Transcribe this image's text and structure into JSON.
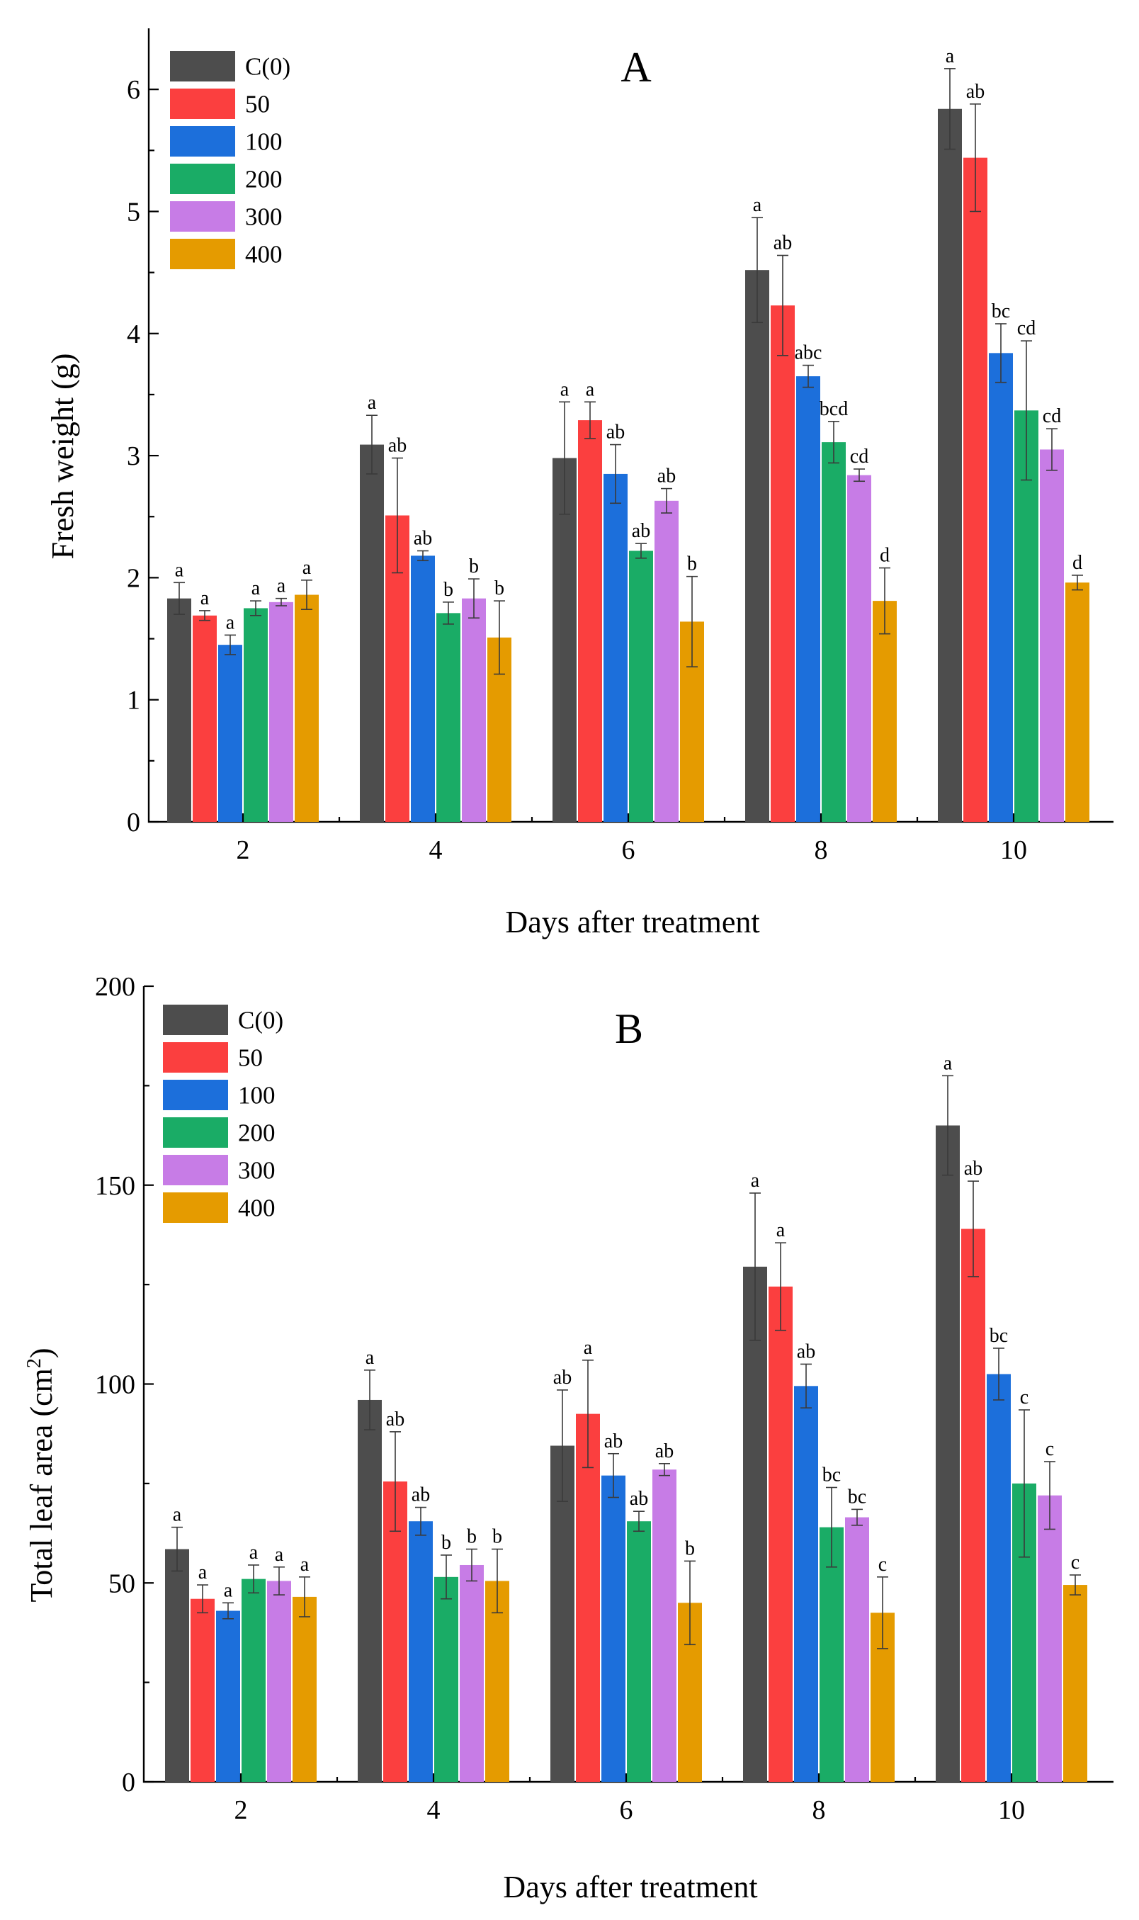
{
  "legend_entries": [
    {
      "label": "C(0)",
      "color": "#4d4d4d"
    },
    {
      "label": "50",
      "color": "#fb3f3f"
    },
    {
      "label": "100",
      "color": "#1c6fdb"
    },
    {
      "label": "200",
      "color": "#1aac66"
    },
    {
      "label": "300",
      "color": "#c77ce6"
    },
    {
      "label": "400",
      "color": "#e59b00"
    }
  ],
  "chart_data": [
    {
      "type": "bar",
      "title": "A",
      "xlabel": "Days after treatment",
      "ylabel": "Fresh weight (g)",
      "ylim": [
        0,
        6.5
      ],
      "yticks": [
        0,
        1,
        2,
        3,
        4,
        5,
        6
      ],
      "categories": [
        "2",
        "4",
        "6",
        "8",
        "10"
      ],
      "series": [
        {
          "name": "C(0)",
          "values": [
            1.83,
            3.09,
            2.98,
            4.52,
            5.84
          ],
          "errors": [
            0.13,
            0.24,
            0.46,
            0.43,
            0.33
          ],
          "letters": [
            "a",
            "a",
            "a",
            "a",
            "a"
          ]
        },
        {
          "name": "50",
          "values": [
            1.69,
            2.51,
            3.29,
            4.23,
            5.44
          ],
          "errors": [
            0.04,
            0.47,
            0.15,
            0.41,
            0.44
          ],
          "letters": [
            "a",
            "ab",
            "a",
            "ab",
            "ab"
          ]
        },
        {
          "name": "100",
          "values": [
            1.45,
            2.18,
            2.85,
            3.65,
            3.84
          ],
          "errors": [
            0.08,
            0.04,
            0.24,
            0.09,
            0.24
          ],
          "letters": [
            "a",
            "ab",
            "ab",
            "abc",
            "bc"
          ]
        },
        {
          "name": "200",
          "values": [
            1.75,
            1.71,
            2.22,
            3.11,
            3.37
          ],
          "errors": [
            0.06,
            0.09,
            0.06,
            0.17,
            0.57
          ],
          "letters": [
            "a",
            "b",
            "ab",
            "bcd",
            "cd"
          ]
        },
        {
          "name": "300",
          "values": [
            1.8,
            1.83,
            2.63,
            2.84,
            3.05
          ],
          "errors": [
            0.03,
            0.16,
            0.1,
            0.05,
            0.17
          ],
          "letters": [
            "a",
            "b",
            "ab",
            "cd",
            "cd"
          ]
        },
        {
          "name": "400",
          "values": [
            1.86,
            1.51,
            1.64,
            1.81,
            1.96
          ],
          "errors": [
            0.12,
            0.3,
            0.37,
            0.27,
            0.06
          ],
          "letters": [
            "a",
            "b",
            "b",
            "d",
            "d"
          ]
        }
      ],
      "legend_position": "top-left"
    },
    {
      "type": "bar",
      "title": "B",
      "xlabel": "Days after treatment",
      "ylabel": "Total leaf area (cm",
      "ylabel_superscript": "2",
      "ylabel_suffix": ")",
      "ylim": [
        0,
        200
      ],
      "yticks": [
        0,
        50,
        100,
        150,
        200
      ],
      "categories": [
        "2",
        "4",
        "6",
        "8",
        "10"
      ],
      "series": [
        {
          "name": "C(0)",
          "values": [
            58.5,
            96.0,
            84.5,
            129.5,
            165.0
          ],
          "errors": [
            5.5,
            7.5,
            14.0,
            18.5,
            12.5
          ],
          "letters": [
            "a",
            "a",
            "ab",
            "a",
            "a"
          ]
        },
        {
          "name": "50",
          "values": [
            46.0,
            75.5,
            92.5,
            124.5,
            139.0
          ],
          "errors": [
            3.5,
            12.5,
            13.5,
            11.0,
            12.0
          ],
          "letters": [
            "a",
            "ab",
            "a",
            "a",
            "ab"
          ]
        },
        {
          "name": "100",
          "values": [
            43.0,
            65.5,
            77.0,
            99.5,
            102.5
          ],
          "errors": [
            2.0,
            3.5,
            5.5,
            5.5,
            6.5
          ],
          "letters": [
            "a",
            "ab",
            "ab",
            "ab",
            "bc"
          ]
        },
        {
          "name": "200",
          "values": [
            51.0,
            51.5,
            65.5,
            64.0,
            75.0
          ],
          "errors": [
            3.5,
            5.5,
            2.5,
            10.0,
            18.5
          ],
          "letters": [
            "a",
            "b",
            "ab",
            "bc",
            "c"
          ]
        },
        {
          "name": "300",
          "values": [
            50.5,
            54.5,
            78.5,
            66.5,
            72.0
          ],
          "errors": [
            3.5,
            4.0,
            1.5,
            2.0,
            8.5
          ],
          "letters": [
            "a",
            "b",
            "ab",
            "bc",
            "c"
          ]
        },
        {
          "name": "400",
          "values": [
            46.5,
            50.5,
            45.0,
            42.5,
            49.5
          ],
          "errors": [
            5.0,
            8.0,
            10.5,
            9.0,
            2.5
          ],
          "letters": [
            "a",
            "b",
            "b",
            "c",
            "c"
          ]
        }
      ],
      "legend_position": "top-left"
    }
  ]
}
